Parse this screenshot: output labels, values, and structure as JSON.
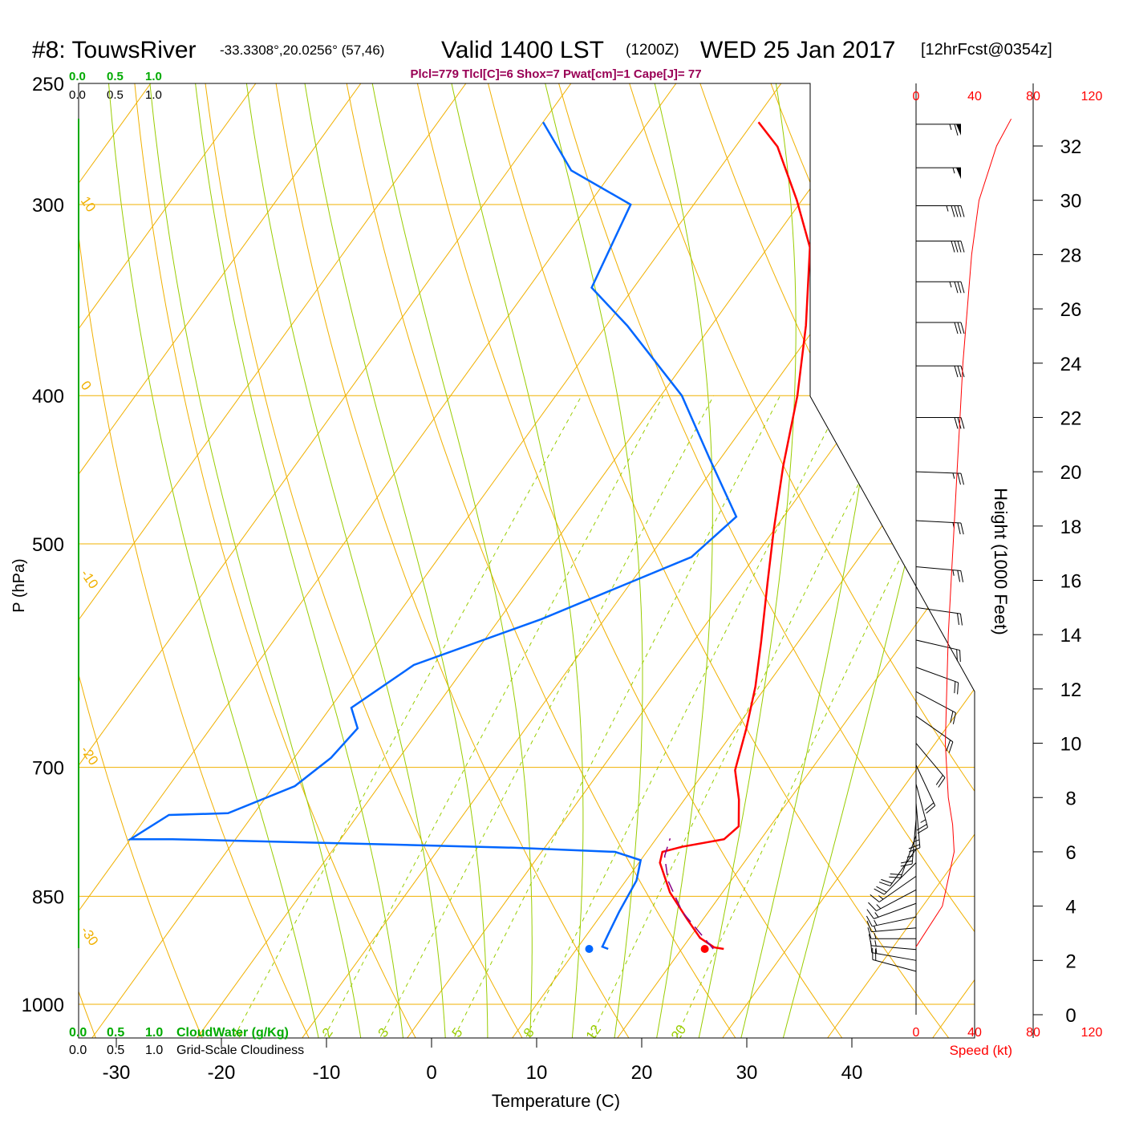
{
  "header": {
    "station": "#8: TouwsRiver",
    "coords": "-33.3308°,20.0256° (57,46)",
    "valid": "Valid 1400 LST",
    "zulu": "(1200Z)",
    "date": "WED 25 Jan 2017",
    "forecast": "[12hrFcst@0354z]",
    "indices": "Plcl=779 Tlcl[C]=6 Shox=7 Pwat[cm]=1 Cape[J]= 77"
  },
  "colors": {
    "isotherm": "#f0b000",
    "dry_adiabat": "#f0b000",
    "moist_adiabat": "#99cc00",
    "mixing_ratio": "#99cc00",
    "temperature": "#ff0000",
    "dewpoint": "#0066ff",
    "parcel": "#880088",
    "cloudwater": "#00aa00",
    "speed": "#ff0000"
  },
  "chart_data": {
    "type": "line",
    "xlabel": "Temperature (C)",
    "ylabel": "P (hPa)",
    "y2label": "Height (1000 Feet)",
    "speed_label": "Speed (kt)",
    "cloudwater_label": "CloudWater (g/Kg)",
    "cloudiness_label": "Grid-Scale Cloudiness",
    "xlim": [
      -34,
      36
    ],
    "ylim": [
      1050,
      250
    ],
    "x_ticks": [
      -30,
      -20,
      -10,
      0,
      10,
      20,
      30,
      40
    ],
    "pressure_ticks": [
      250,
      300,
      400,
      500,
      700,
      850,
      1000
    ],
    "height_ticks": [
      0,
      2,
      4,
      6,
      8,
      10,
      12,
      14,
      16,
      18,
      20,
      22,
      24,
      26,
      28,
      30,
      32
    ],
    "speed_ticks": [
      "0",
      "40",
      "80",
      "120"
    ],
    "cloud_ticks": [
      "0.0",
      "0.5",
      "1.0"
    ],
    "dry_adiabat_labels": [
      "10",
      "0",
      "-10",
      "-20",
      "-30"
    ],
    "isotherm_edge_labels": [
      "0",
      "10",
      "20",
      "30"
    ],
    "mixing_ratio_labels": [
      "1",
      "2",
      "3",
      "5",
      "8",
      "12",
      "20"
    ],
    "mixing_ratio_values": [
      1,
      2,
      3,
      5,
      8,
      12,
      20
    ],
    "series": [
      {
        "name": "Temperature",
        "points": [
          [
            24.0,
            920
          ],
          [
            23.0,
            918
          ],
          [
            21.0,
            905
          ],
          [
            18.5,
            880
          ],
          [
            15.0,
            845
          ],
          [
            12.0,
            808
          ],
          [
            11.5,
            795
          ],
          [
            13.0,
            789
          ],
          [
            16.5,
            780
          ],
          [
            17.0,
            765
          ],
          [
            15.2,
            735
          ],
          [
            12.8,
            703
          ],
          [
            11.0,
            660
          ],
          [
            9.0,
            620
          ],
          [
            6.5,
            580
          ],
          [
            3.0,
            530
          ],
          [
            0.0,
            490
          ],
          [
            -3.5,
            445
          ],
          [
            -7.0,
            400
          ],
          [
            -11.0,
            360
          ],
          [
            -16.0,
            320
          ],
          [
            -20.5,
            298
          ],
          [
            -26.0,
            275
          ],
          [
            -29.5,
            265
          ]
        ]
      },
      {
        "name": "Dewpoint",
        "points": [
          [
            13.0,
            920
          ],
          [
            12.3,
            917
          ],
          [
            12.0,
            900
          ],
          [
            11.5,
            870
          ],
          [
            11.0,
            830
          ],
          [
            10.0,
            805
          ],
          [
            7.0,
            795
          ],
          [
            -3.0,
            790
          ],
          [
            -19.0,
            785
          ],
          [
            -36.0,
            780
          ],
          [
            -40.0,
            780
          ],
          [
            -38.0,
            752
          ],
          [
            -32.5,
            750
          ],
          [
            -28.0,
            720
          ],
          [
            -26.5,
            690
          ],
          [
            -26.0,
            660
          ],
          [
            -28.0,
            640
          ],
          [
            -25.0,
            600
          ],
          [
            -16.0,
            560
          ],
          [
            -6.0,
            510
          ],
          [
            -4.5,
            480
          ],
          [
            -11.0,
            440
          ],
          [
            -18.0,
            400
          ],
          [
            -28.0,
            360
          ],
          [
            -34.0,
            340
          ],
          [
            -36.0,
            300
          ],
          [
            -44.0,
            285
          ],
          [
            -50.0,
            265
          ]
        ]
      },
      {
        "name": "Parcel",
        "points": [
          [
            23.0,
            920
          ],
          [
            17.5,
            870
          ],
          [
            14.0,
            830
          ],
          [
            12.0,
            800
          ],
          [
            11.3,
            779
          ]
        ]
      }
    ],
    "surface_temperature": 26,
    "surface_dewpoint": 15,
    "surface_pressure": 920,
    "wind_speed_profile": [
      [
        0,
        2.5
      ],
      [
        18,
        4
      ],
      [
        26,
        6
      ],
      [
        25,
        7
      ],
      [
        22,
        8
      ],
      [
        20,
        10
      ],
      [
        21,
        12
      ],
      [
        22,
        14
      ],
      [
        24,
        16
      ],
      [
        26,
        18
      ],
      [
        28,
        20
      ],
      [
        30,
        22
      ],
      [
        32,
        24
      ],
      [
        35,
        26
      ],
      [
        38,
        28
      ],
      [
        43,
        30
      ],
      [
        55,
        32
      ],
      [
        65,
        33
      ]
    ],
    "wind_barbs": [
      {
        "height": 32.8,
        "dir": 270,
        "speed": 65
      },
      {
        "height": 31.2,
        "dir": 270,
        "speed": 55
      },
      {
        "height": 29.8,
        "dir": 270,
        "speed": 45
      },
      {
        "height": 28.5,
        "dir": 270,
        "speed": 40
      },
      {
        "height": 27.0,
        "dir": 270,
        "speed": 35
      },
      {
        "height": 25.5,
        "dir": 270,
        "speed": 32
      },
      {
        "height": 23.9,
        "dir": 270,
        "speed": 30
      },
      {
        "height": 22.0,
        "dir": 270,
        "speed": 28
      },
      {
        "height": 20.0,
        "dir": 272,
        "speed": 26
      },
      {
        "height": 18.2,
        "dir": 273,
        "speed": 24
      },
      {
        "height": 16.5,
        "dir": 275,
        "speed": 23
      },
      {
        "height": 15.0,
        "dir": 278,
        "speed": 22
      },
      {
        "height": 13.8,
        "dir": 283,
        "speed": 21
      },
      {
        "height": 12.8,
        "dir": 290,
        "speed": 20
      },
      {
        "height": 11.9,
        "dir": 298,
        "speed": 20
      },
      {
        "height": 11.0,
        "dir": 305,
        "speed": 20
      },
      {
        "height": 10.0,
        "dir": 320,
        "speed": 20
      },
      {
        "height": 9.2,
        "dir": 335,
        "speed": 22
      },
      {
        "height": 8.5,
        "dir": 345,
        "speed": 24
      },
      {
        "height": 7.8,
        "dir": 355,
        "speed": 26
      },
      {
        "height": 7.2,
        "dir": 5,
        "speed": 25
      },
      {
        "height": 6.6,
        "dir": 20,
        "speed": 22
      },
      {
        "height": 6.1,
        "dir": 35,
        "speed": 20
      },
      {
        "height": 5.6,
        "dir": 45,
        "speed": 18
      },
      {
        "height": 5.1,
        "dir": 55,
        "speed": 17
      },
      {
        "height": 4.6,
        "dir": 62,
        "speed": 16
      },
      {
        "height": 4.1,
        "dir": 70,
        "speed": 15
      },
      {
        "height": 3.6,
        "dir": 78,
        "speed": 15
      },
      {
        "height": 3.2,
        "dir": 85,
        "speed": 15
      },
      {
        "height": 2.8,
        "dir": 90,
        "speed": 16
      },
      {
        "height": 2.4,
        "dir": 95,
        "speed": 17
      },
      {
        "height": 2.0,
        "dir": 100,
        "speed": 17
      },
      {
        "height": 1.6,
        "dir": 105,
        "speed": 18
      }
    ]
  }
}
